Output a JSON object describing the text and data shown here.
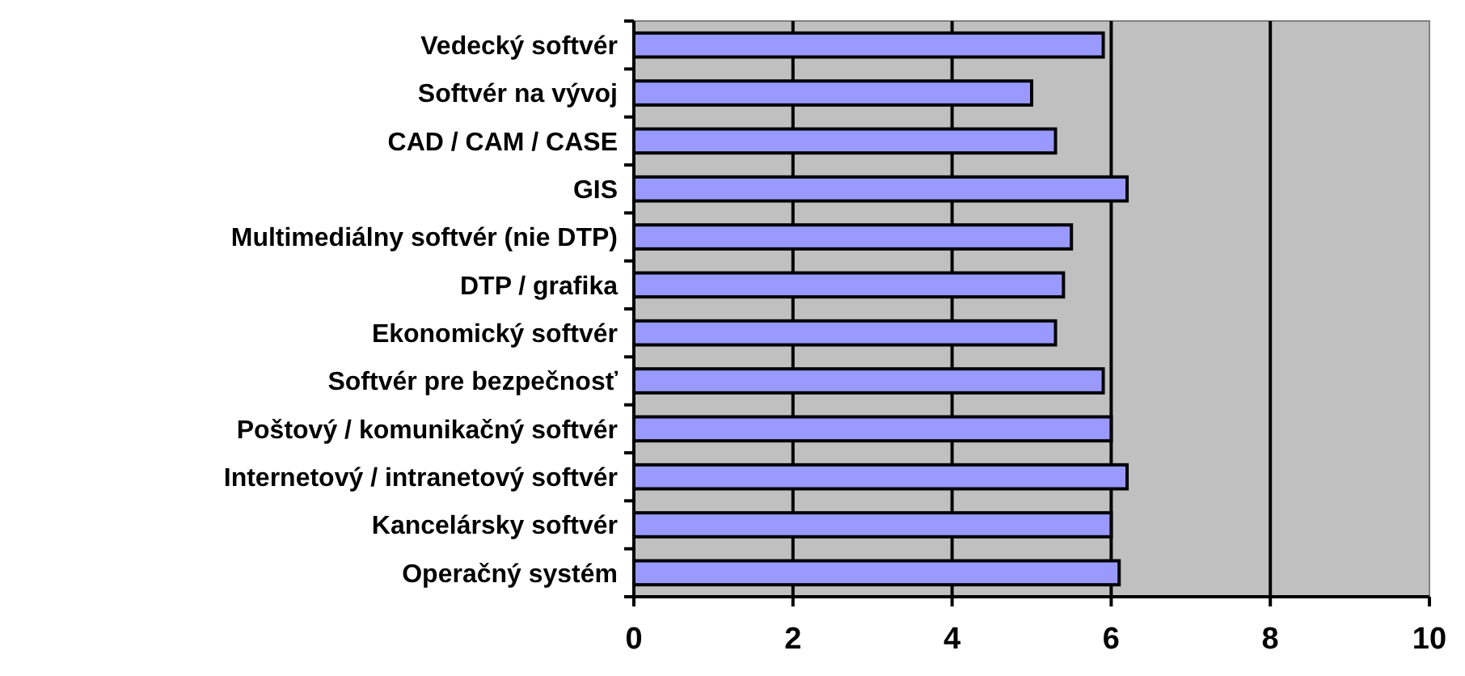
{
  "chart_data": {
    "type": "bar",
    "orientation": "horizontal",
    "categories": [
      "Vedecký softvér",
      "Softvér na vývoj",
      "CAD / CAM / CASE",
      "GIS",
      "Multimediálny softvér (nie DTP)",
      "DTP / grafika",
      "Ekonomický softvér",
      "Softvér pre bezpečnosť",
      "Poštový / komunikačný softvér",
      "Internetový / intranetový softvér",
      "Kancelársky softvér",
      "Operačný systém"
    ],
    "values": [
      5.9,
      5.0,
      5.3,
      6.2,
      5.5,
      5.4,
      5.3,
      5.9,
      6.0,
      6.2,
      6.0,
      6.1
    ],
    "color": "#9999ff",
    "xlim": [
      0,
      10
    ],
    "xticks": [
      0,
      2,
      4,
      6,
      8,
      10
    ],
    "grid": "x"
  }
}
